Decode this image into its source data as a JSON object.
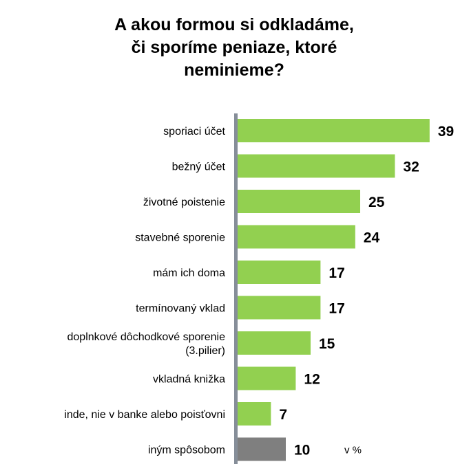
{
  "chart_data": {
    "type": "bar",
    "orientation": "horizontal",
    "title_lines": [
      "A akou formou si odkladáme,",
      "či sporíme peniaze, ktoré",
      "neminieme?"
    ],
    "categories": [
      [
        "sporiaci účet"
      ],
      [
        "bežný účet"
      ],
      [
        "životné poistenie"
      ],
      [
        "stavebné sporenie"
      ],
      [
        "mám ich doma"
      ],
      [
        "termínovaný vklad"
      ],
      [
        "doplnkové dôchodkové sporenie",
        "(3.pilier)"
      ],
      [
        "vkladná knižka"
      ],
      [
        "inde, nie v banke alebo poisťovni"
      ],
      [
        "iným spôsobom"
      ]
    ],
    "values": [
      39,
      32,
      25,
      24,
      17,
      17,
      15,
      12,
      7,
      10
    ],
    "unit_label": "v %",
    "grid": false,
    "colors": {
      "main": "#92d050",
      "other": "#7f7f7f",
      "axis": "#868e99"
    },
    "bar_color_keys": [
      "main",
      "main",
      "main",
      "main",
      "main",
      "main",
      "main",
      "main",
      "main",
      "other"
    ]
  }
}
